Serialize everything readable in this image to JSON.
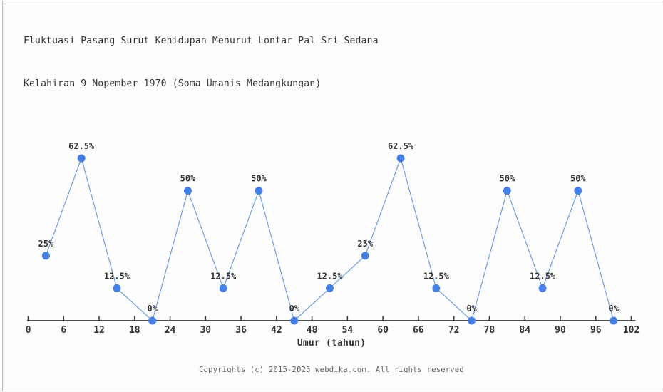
{
  "title": {
    "line1": "Fluktuasi Pasang Surut Kehidupan Menurut Lontar Pal Sri Sedana",
    "line2": "Kelahiran 9 Nopember 1970 (Soma Umanis Medangkungan)"
  },
  "footer": {
    "text": "Copyrights (c) 2015-2025 webdika.com. All rights reserved"
  },
  "chart_data": {
    "type": "line",
    "title": "Fluktuasi Pasang Surut Kehidupan Menurut Lontar Pal Sri Sedana Kelahiran 9 Nopember 1970 (Soma Umanis Medangkungan)",
    "xlabel": "Umur (tahun)",
    "ylabel": "",
    "x": [
      3,
      9,
      15,
      21,
      27,
      33,
      39,
      45,
      51,
      57,
      63,
      69,
      75,
      81,
      87,
      93,
      99
    ],
    "values": [
      25,
      62.5,
      12.5,
      0,
      50,
      12.5,
      50,
      0,
      12.5,
      25,
      62.5,
      12.5,
      0,
      50,
      12.5,
      50,
      0
    ],
    "point_labels": [
      "25%",
      "62.5%",
      "12.5%",
      "0%",
      "50%",
      "12.5%",
      "50%",
      "0%",
      "12.5%",
      "25%",
      "62.5%",
      "12.5%",
      "0%",
      "50%",
      "12.5%",
      "50%",
      "0%"
    ],
    "x_ticks": [
      0,
      6,
      12,
      18,
      24,
      30,
      36,
      42,
      48,
      54,
      60,
      66,
      72,
      78,
      84,
      90,
      96,
      102
    ],
    "xlim": [
      0,
      102
    ],
    "ylim": [
      0,
      100
    ],
    "grid": false,
    "legend": "none",
    "colors": {
      "marker": "#4580ea",
      "line": "#6d9eeb",
      "axis": "#333333",
      "tick_label": "#333333",
      "point_label": "#333333",
      "title": "#333333",
      "footer": "#616161",
      "background": "#fdfdfd",
      "border": "#bdbdbd"
    }
  }
}
